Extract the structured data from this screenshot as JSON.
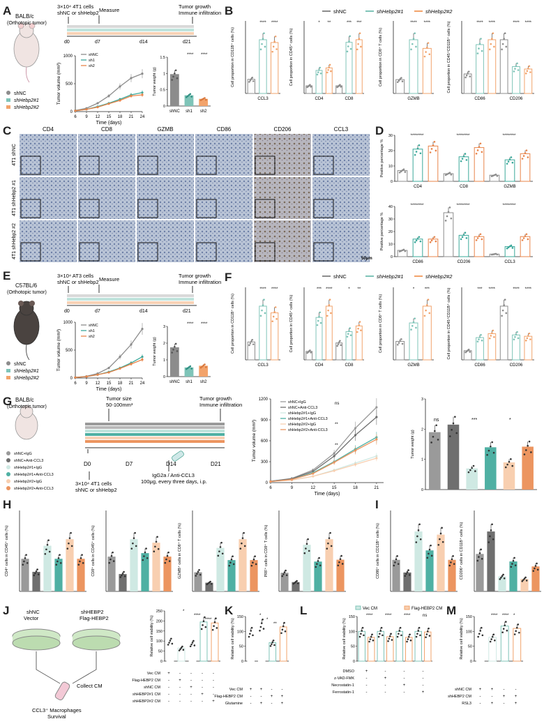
{
  "panels": {
    "A": "A",
    "B": "B",
    "C": "C",
    "D": "D",
    "E": "E",
    "F": "F",
    "G": "G",
    "H": "H",
    "I": "I",
    "J": "J",
    "K": "K",
    "L": "L",
    "M": "M"
  },
  "colors": {
    "shNC": "#8c8c8c",
    "sh1": "#7fc4b8",
    "sh2": "#f2a36b",
    "teal": "#3aa89a",
    "orange": "#e8844a",
    "grey": "#555555"
  },
  "legend": {
    "shNC": "shNC",
    "sh1": "shHebp2#1",
    "sh2": "shHebp2#2"
  },
  "A": {
    "mouse_label": "BALB/c\n(Orthotopic tumor)",
    "mouse_line1": "BALB/c",
    "mouse_line2": "(Orthotopic tumor)",
    "inject_line1": "3×10⁴ 4T1 cells",
    "inject_line2": "shNC or shHebp2",
    "measure": "Measure",
    "end_line1": "Tumor growth",
    "end_line2": "Immune infiltration",
    "days": [
      "d0",
      "d7",
      "d14",
      "d21"
    ],
    "legend": [
      "shNC",
      "shHebp2#1",
      "shHebp2#2"
    ],
    "vol_ylabel": "Tumor volume (mm³)",
    "vol_xlabel": "Time (days)",
    "vol_legend": [
      "shNC",
      "sh1",
      "sh2"
    ],
    "weight_ylabel": "Tumor weight (g)",
    "weight_cats": [
      "shNC",
      "sh1",
      "sh2"
    ],
    "weight_sig": [
      "****",
      "****"
    ]
  },
  "B": {
    "charts": [
      {
        "ylabel": "Cell proportion in CD11B⁺ cells (%)",
        "cats": [
          "CCL3"
        ],
        "sig": [
          "****",
          "****"
        ]
      },
      {
        "ylabel": "Cell proportion in CD45⁺ cells (%)",
        "cats": [
          "CD4",
          "CD8"
        ],
        "sig": [
          "*",
          "**",
          "***",
          "***"
        ]
      },
      {
        "ylabel": "Cell proportion in CD8⁺ T cells (%)",
        "cats": [
          "GZMB"
        ],
        "sig": [
          "****",
          "****"
        ]
      },
      {
        "ylabel": "Cell proportion in CD45⁺CD11B⁺ cells (%)",
        "cats": [
          "CD86",
          "CD206"
        ],
        "sig": [
          "****",
          "****",
          "****",
          "****"
        ]
      }
    ]
  },
  "C": {
    "columns": [
      "CD4",
      "CD8",
      "GZMB",
      "CD86",
      "CD206",
      "CCL3"
    ],
    "rows": [
      "4T1 shNC",
      "4T1 shHebp2 #1",
      "4T1 shHebp2 #2"
    ],
    "scale": "50μm"
  },
  "D": {
    "ylabel": "Positive percentage %",
    "top_cats": [
      "CD4",
      "CD8",
      "GZMB"
    ],
    "bottom_cats": [
      "CD86",
      "CD206",
      "CCL3"
    ],
    "sig": "****"
  },
  "E": {
    "mouse_line1": "C57BL/6",
    "mouse_line2": "(Orthotopic tumor)",
    "inject_line1": "3×10⁴ AT3 cells",
    "inject_line2": "shNC or shHebp2",
    "measure": "Measure",
    "end_line1": "Tumor growth",
    "end_line2": "Immune infiltration",
    "days": [
      "d0",
      "d7",
      "d14",
      "d21"
    ],
    "legend": [
      "shNC",
      "shHebp2#1",
      "shHebp2#2"
    ],
    "vol_ylabel": "Tumor volume (mm³)",
    "vol_xlabel": "Time (days)",
    "vol_legend": [
      "shNC",
      "sh1",
      "sh2"
    ],
    "weight_ylabel": "Tumor weight (g)",
    "weight_cats": [
      "shNC",
      "sh1",
      "sh2"
    ],
    "weight_sig": [
      "****",
      "****"
    ]
  },
  "F": {
    "charts": [
      {
        "ylabel": "Cell proportion in CD11B⁺ cells (%)",
        "cats": [
          "CCL3"
        ],
        "sig": [
          "****",
          "****"
        ]
      },
      {
        "ylabel": "Cell proportion in CD45⁺ cells (%)",
        "cats": [
          "CD4",
          "CD8"
        ],
        "sig": [
          "***",
          "****",
          "*",
          "**"
        ]
      },
      {
        "ylabel": "Cell proportion in CD8⁺ T cells (%)",
        "cats": [
          "GZMB"
        ],
        "sig": [
          "*",
          "***"
        ]
      },
      {
        "ylabel": "Cell proportion in CD45⁺CD11B⁺ cells (%)",
        "cats": [
          "CD86",
          "CD206"
        ],
        "sig": [
          "***",
          "****",
          "****",
          "****"
        ]
      }
    ]
  },
  "G": {
    "mouse_line1": "BALB/c",
    "mouse_line2": "(Orthotopic tumor)",
    "size_line1": "Tumor size",
    "size_line2": "50-100mm³",
    "end_line1": "Tumor growth",
    "end_line2": "Immune infiltration",
    "days": [
      "D0",
      "D7",
      "D14",
      "D21"
    ],
    "inject_line1": "3×10⁴ 4T1 cells",
    "inject_line2": "shNC or shHebp2",
    "treat_line1": "IgG2a / Anti-CCL3",
    "treat_line2": "100μg, every three days, i.p.",
    "legend": [
      "shNC+IgG",
      "shNC+Anti-CCL3",
      "shHebp2#1+IgG",
      "shHebp2#1+Anti-CCL3",
      "shHebp2#2+IgG",
      "shHebp2#2+Anti-CCL3"
    ],
    "vol_ylabel": "Tumor volume (mm³)",
    "vol_xlabel": "Time (days)",
    "vol_sig": [
      "ns",
      "**",
      "**"
    ],
    "weight_ylabel": "Tumor weight (g)",
    "weight_sig": [
      "ns",
      "***",
      "*"
    ]
  },
  "H": {
    "charts": [
      {
        "ylabel": "CD4⁺ cells in CD45⁺ cells (%)"
      },
      {
        "ylabel": "CD8⁺ cells in CD45⁺ cells (%)"
      },
      {
        "ylabel": "GZMB⁺ cells in CD8⁺ T cells (%)"
      },
      {
        "ylabel": "PRF⁺ cells in CD8⁺ T cells (%)"
      }
    ]
  },
  "I": {
    "charts": [
      {
        "ylabel": "CD86⁺ cells in CD11B⁺ cells (%)"
      },
      {
        "ylabel": "CD206⁺ cells in CD11B⁺ cells (%)"
      }
    ]
  },
  "J": {
    "dish1_line1": "shNC",
    "dish1_line2": "Vector",
    "dish2_line1": "shHEBP2",
    "dish2_line2": "Flag-HEBP2",
    "collect": "Collect CM",
    "survival_line1": "CCL3⁺ Macrophages",
    "survival_line2": "Survival",
    "ylabel": "Relative cell viability (%)",
    "conditions": [
      "Vec CM",
      "Flag-HEBP2 CM",
      "shNC CM",
      "shHEBP2#1 CM",
      "shHEBP2#2 CM"
    ],
    "sig": [
      "*",
      "****",
      "****"
    ]
  },
  "K": {
    "ylabel": "Relative cell viability (%)",
    "conditions": [
      "Vec CM",
      "Flag-HEBP2 CM",
      "Glutamine"
    ],
    "sig": [
      "*",
      "*",
      "**"
    ]
  },
  "L": {
    "legend": [
      "Vec CM",
      "Flag-HEBP2 CM"
    ],
    "ylabel": "Relative cell viability (%)",
    "conditions": [
      "DMSO",
      "z-VAD-FMK",
      "Necrostatin-1",
      "Ferrostatin-1"
    ],
    "sig": [
      "****",
      "****",
      "****",
      "ns"
    ]
  },
  "M": {
    "ylabel": "Relative cell viability (%)",
    "conditions": [
      "shNC CM",
      "shHEBP2 CM",
      "RSL3"
    ],
    "sig": [
      "****",
      "****",
      "*"
    ]
  },
  "chart_data": [
    {
      "id": "A-volume",
      "type": "line",
      "title": "",
      "xlabel": "Time (days)",
      "ylabel": "Tumor volume (mm³)",
      "x": [
        6,
        9,
        12,
        15,
        18,
        21,
        24
      ],
      "xlim": [
        6,
        24
      ],
      "ylim": [
        0,
        1000
      ],
      "series": [
        {
          "name": "shNC",
          "values": [
            20,
            60,
            150,
            280,
            450,
            600,
            680
          ]
        },
        {
          "name": "sh1",
          "values": [
            15,
            40,
            90,
            150,
            220,
            300,
            340
          ]
        },
        {
          "name": "sh2",
          "values": [
            15,
            40,
            80,
            140,
            200,
            280,
            300
          ]
        }
      ]
    },
    {
      "id": "A-weight",
      "type": "bar",
      "categories": [
        "shNC",
        "sh1",
        "sh2"
      ],
      "values": [
        0.98,
        0.33,
        0.22
      ],
      "ylim": [
        0,
        1.5
      ],
      "ylabel": "Tumor weight (g)"
    },
    {
      "id": "E-volume",
      "type": "line",
      "xlabel": "Time (days)",
      "ylabel": "Tumor volume (mm³)",
      "x": [
        6,
        9,
        12,
        15,
        18,
        21,
        24
      ],
      "xlim": [
        6,
        24
      ],
      "ylim": [
        0,
        1000
      ],
      "series": [
        {
          "name": "shNC",
          "values": [
            10,
            30,
            80,
            180,
            380,
            600,
            880
          ]
        },
        {
          "name": "sh1",
          "values": [
            10,
            25,
            60,
            110,
            180,
            270,
            380
          ]
        },
        {
          "name": "sh2",
          "values": [
            10,
            25,
            60,
            100,
            170,
            250,
            330
          ]
        }
      ]
    },
    {
      "id": "E-weight",
      "type": "bar",
      "categories": [
        "shNC",
        "sh1",
        "sh2"
      ],
      "values": [
        1.75,
        0.55,
        0.65
      ],
      "ylim": [
        0,
        3
      ],
      "ylabel": "Tumor weight (g)"
    },
    {
      "id": "G-volume",
      "type": "line",
      "xlabel": "Time (days)",
      "ylabel": "Tumor volume (mm³)",
      "x": [
        6,
        9,
        12,
        15,
        18,
        21
      ],
      "xlim": [
        6,
        22
      ],
      "ylim": [
        0,
        1200
      ],
      "series": [
        {
          "name": "shNC+IgG",
          "values": [
            20,
            60,
            180,
            420,
            780,
            1080
          ]
        },
        {
          "name": "shNC+Anti-CCL3",
          "values": [
            20,
            55,
            160,
            380,
            680,
            940
          ]
        },
        {
          "name": "shHebp2#1+IgG",
          "values": [
            15,
            35,
            90,
            180,
            280,
            380
          ]
        },
        {
          "name": "shHebp2#1+Anti-CCL3",
          "values": [
            15,
            45,
            140,
            300,
            480,
            650
          ]
        },
        {
          "name": "shHebp2#2+IgG",
          "values": [
            15,
            35,
            90,
            170,
            260,
            350
          ]
        },
        {
          "name": "shHebp2#2+Anti-CCL3",
          "values": [
            15,
            45,
            130,
            290,
            460,
            620
          ]
        }
      ]
    },
    {
      "id": "G-weight",
      "type": "bar",
      "categories": [
        "shNC+IgG",
        "shNC+Anti-CCL3",
        "shHebp2#1+IgG",
        "shHebp2#1+Anti-CCL3",
        "shHebp2#2+IgG",
        "shHebp2#2+Anti-CCL3"
      ],
      "values": [
        1.9,
        2.15,
        0.7,
        1.4,
        0.9,
        1.42
      ],
      "ylim": [
        0,
        3
      ],
      "ylabel": "Tumor weight (g)"
    }
  ]
}
